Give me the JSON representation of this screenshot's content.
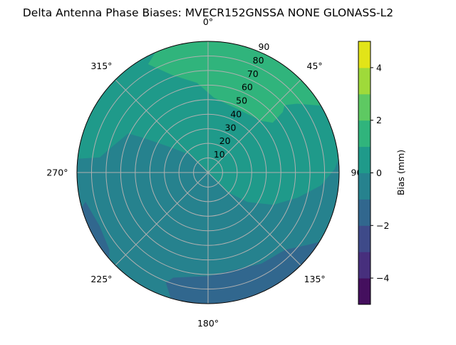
{
  "chart_data": {
    "type": "polar-contour",
    "title": "Delta Antenna Phase Biases: MVECR152GNSSA   NONE GLONASS-L2",
    "angular_axis": {
      "direction": "clockwise",
      "zero_location": "top",
      "tick_labels": [
        "0°",
        "45°",
        "90°",
        "135°",
        "180°",
        "225°",
        "270°",
        "315°"
      ],
      "tick_values": [
        0,
        45,
        90,
        135,
        180,
        225,
        270,
        315
      ]
    },
    "radial_axis": {
      "range": [
        0,
        90
      ],
      "tick_values": [
        10,
        20,
        30,
        40,
        50,
        60,
        70,
        80,
        90
      ],
      "tick_labels": [
        "10",
        "20",
        "30",
        "40",
        "50",
        "60",
        "70",
        "80",
        "90"
      ]
    },
    "grid": true,
    "colorbar": {
      "label": "Bias (mm)",
      "range": [
        -5,
        5
      ],
      "levels": [
        -5,
        -4,
        -3,
        -2,
        -1,
        0,
        1,
        2,
        3,
        4,
        5
      ],
      "tick_values": [
        -4,
        -2,
        0,
        2,
        4
      ],
      "tick_labels": [
        "−4",
        "−2",
        "0",
        "2",
        "4"
      ],
      "colors": [
        "#440f5e",
        "#472f7d",
        "#3e4a89",
        "#31678e",
        "#26828e",
        "#1f9a8a",
        "#30b47c",
        "#5ec962",
        "#9fda3a",
        "#e2e418"
      ],
      "location": "right"
    },
    "background_level": [
      -1,
      0
    ],
    "regions": [
      {
        "level": [
          0,
          1
        ],
        "color": "#1f9a8a",
        "boundary": [
          [
            276,
            90
          ],
          [
            278,
            75
          ],
          [
            283,
            70
          ],
          [
            296,
            61
          ],
          [
            298,
            51
          ],
          [
            304,
            31
          ],
          [
            315,
            17
          ],
          [
            0,
            0
          ],
          [
            135,
            19
          ],
          [
            126.7,
            34
          ],
          [
            116.3,
            50
          ],
          [
            105.6,
            64
          ],
          [
            96.5,
            78
          ],
          [
            88.4,
            87
          ],
          [
            84.2,
            90
          ]
        ],
        "closing_arc": [
          84.2,
          -84
        ]
      },
      {
        "level": [
          1,
          2
        ],
        "color": "#30b47c",
        "boundary": [
          [
            336.4,
            90
          ],
          [
            331,
            85
          ],
          [
            340,
            71
          ],
          [
            353,
            62
          ],
          [
            4.4,
            51.5
          ],
          [
            24.7,
            48
          ],
          [
            46.2,
            51
          ],
          [
            52.4,
            56
          ],
          [
            51,
            66
          ],
          [
            48.7,
            70
          ],
          [
            52.2,
            77
          ],
          [
            59.3,
            90
          ]
        ],
        "closing_arc": [
          59.3,
          -23.6
        ]
      },
      {
        "level": [
          -2,
          -1
        ],
        "color": "#31678e",
        "boundary": [
          [
            196.5,
            90
          ],
          [
            201,
            81
          ],
          [
            198.3,
            76
          ],
          [
            179.6,
            71
          ],
          [
            149.6,
            72.5
          ],
          [
            135,
            75
          ],
          [
            125.6,
            85
          ],
          [
            122,
            90
          ]
        ],
        "closing_arc": [
          122,
          196.5
        ]
      },
      {
        "level": [
          -2,
          -1
        ],
        "color": "#31678e",
        "boundary": [
          [
            229,
            90
          ],
          [
            232,
            86
          ],
          [
            243.7,
            83
          ],
          [
            256.6,
            86.5
          ],
          [
            254.5,
            90
          ]
        ],
        "closing_arc": [
          254.5,
          229
        ]
      }
    ]
  }
}
